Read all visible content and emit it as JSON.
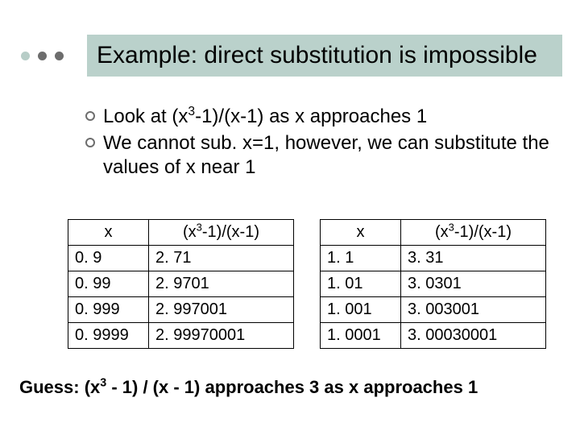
{
  "title": "Example: direct substitution is impossible",
  "title_bullet_colors": [
    "#b7cdc7",
    "#6d6d6d",
    "#6d6d6d"
  ],
  "title_bg": "#bad1cb",
  "bullets": {
    "b0_pre": "Look at (x",
    "b0_sup": "3",
    "b0_post": "-1)/(x-1) as x approaches 1",
    "b1": "We cannot sub. x=1, however, we can substitute the values of x near 1"
  },
  "left_table": {
    "x_header": "x",
    "fx_pre": "(x",
    "fx_sup": "3",
    "fx_post": "-1)/(x-1)",
    "rows": [
      {
        "x": "0. 9",
        "fx": "2. 71"
      },
      {
        "x": "0. 99",
        "fx": "2. 9701"
      },
      {
        "x": "0. 999",
        "fx": "2. 997001"
      },
      {
        "x": "0. 9999",
        "fx": "2. 99970001"
      }
    ]
  },
  "right_table": {
    "x_header": "x",
    "fx_pre": "(x",
    "fx_sup": "3",
    "fx_post": "-1)/(x-1)",
    "rows": [
      {
        "x": "1. 1",
        "fx": "3. 31"
      },
      {
        "x": "1. 01",
        "fx": "3. 0301"
      },
      {
        "x": "1. 001",
        "fx": "3. 003001"
      },
      {
        "x": "1. 0001",
        "fx": "3. 00030001"
      }
    ]
  },
  "guess": {
    "pre": "Guess: (x",
    "sup": "3",
    "post": " - 1) / (x - 1) approaches 3 as x approaches 1"
  },
  "ring_border": "#6d6d6d"
}
